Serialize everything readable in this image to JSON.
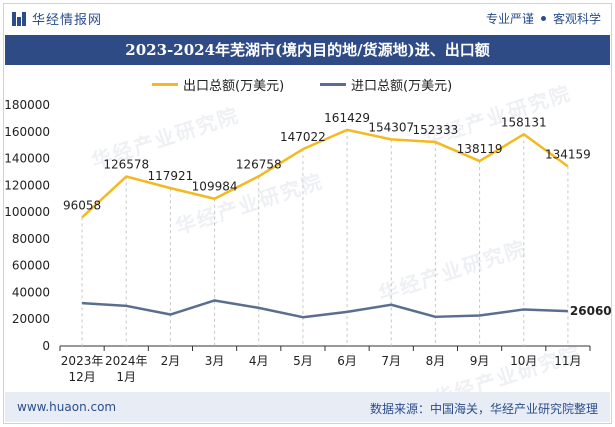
{
  "brand": {
    "logo_text": "华经情报网",
    "tagline_left": "专业严谨",
    "tagline_right": "客观科学",
    "primary_color": "#2b4d8c"
  },
  "title": "2023-2024年芜湖市(境内目的地/货源地)进、出口额",
  "footer": {
    "url": "www.huaon.com",
    "source": "数据来源：中国海关，华经产业研究院整理"
  },
  "watermark": "华经产业研究院",
  "chart_data": {
    "type": "line",
    "categories": [
      "2023年\n12月",
      "2024年\n1月",
      "2月",
      "3月",
      "4月",
      "5月",
      "6月",
      "7月",
      "8月",
      "9月",
      "10月",
      "11月"
    ],
    "ylim": [
      0,
      180000
    ],
    "yticks": [
      0,
      20000,
      40000,
      60000,
      80000,
      100000,
      120000,
      140000,
      160000,
      180000
    ],
    "grid": false,
    "legend_position": "top-center",
    "series": [
      {
        "name": "出口总额(万美元)",
        "color": "#f5b920",
        "values": [
          96058,
          126578,
          117921,
          109984,
          126758,
          147022,
          161429,
          154307,
          152333,
          138119,
          158131,
          134159
        ],
        "labels_shown": true
      },
      {
        "name": "进口总额(万美元)",
        "color": "#5a6e8f",
        "values": [
          32000,
          30000,
          23500,
          34000,
          28500,
          21500,
          25500,
          30800,
          21800,
          22800,
          27300,
          26060
        ],
        "last_label": "26060"
      }
    ]
  }
}
